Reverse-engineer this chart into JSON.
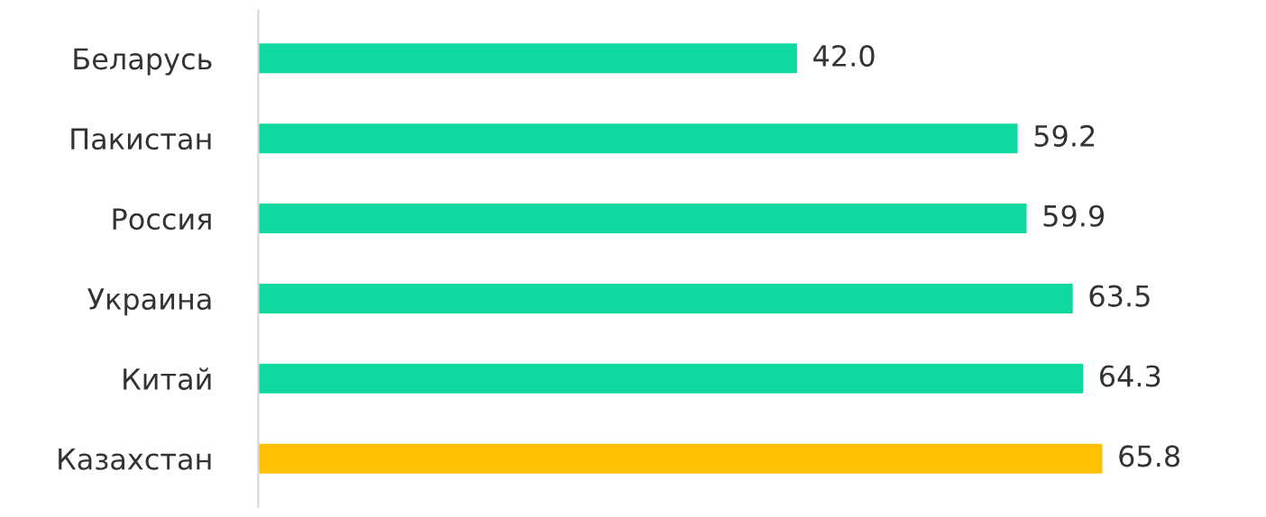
{
  "chart_data": {
    "type": "bar",
    "orientation": "horizontal",
    "categories": [
      "Беларусь",
      "Пакистан",
      "Россия",
      "Украина",
      "Китай",
      "Казахстан"
    ],
    "values": [
      42.0,
      59.2,
      59.9,
      63.5,
      64.3,
      65.8
    ],
    "colors": [
      "#0fd9a0",
      "#0fd9a0",
      "#0fd9a0",
      "#0fd9a0",
      "#0fd9a0",
      "#ffc000"
    ],
    "value_labels": [
      "42.0",
      "59.2",
      "59.9",
      "63.5",
      "64.3",
      "65.8"
    ]
  }
}
